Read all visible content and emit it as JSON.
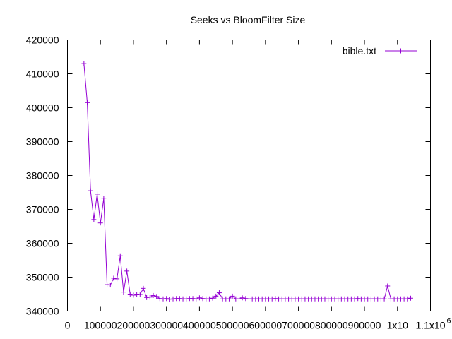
{
  "chart_data": {
    "type": "line",
    "title": "Seeks vs BloomFilter Size",
    "xlabel": "",
    "ylabel": "",
    "xlim": [
      0,
      1100000
    ],
    "ylim": [
      340000,
      420000
    ],
    "x_ticks": [
      0,
      100000,
      200000,
      300000,
      400000,
      500000,
      600000,
      700000,
      800000,
      900000,
      1000000,
      1100000
    ],
    "x_tick_labels": [
      "0",
      "100000",
      "200000",
      "300000",
      "400000",
      "500000",
      "600000",
      "700000",
      "800000",
      "900000",
      "1x10",
      "1.1x10"
    ],
    "x_tick_exponent": "6",
    "y_ticks": [
      340000,
      350000,
      360000,
      370000,
      380000,
      390000,
      400000,
      410000,
      420000
    ],
    "y_tick_labels": [
      "340000",
      "350000",
      "360000",
      "370000",
      "380000",
      "390000",
      "400000",
      "410000",
      "420000"
    ],
    "grid": false,
    "legend_position": "top-right",
    "series": [
      {
        "name": "bible.txt",
        "color": "#9400d3",
        "x": [
          50000,
          60000,
          70000,
          80000,
          90000,
          100000,
          110000,
          120000,
          130000,
          140000,
          150000,
          160000,
          170000,
          180000,
          190000,
          200000,
          210000,
          220000,
          230000,
          240000,
          250000,
          260000,
          270000,
          280000,
          290000,
          300000,
          310000,
          320000,
          330000,
          340000,
          350000,
          360000,
          370000,
          380000,
          390000,
          400000,
          410000,
          420000,
          430000,
          440000,
          450000,
          460000,
          470000,
          480000,
          490000,
          500000,
          510000,
          520000,
          530000,
          540000,
          550000,
          560000,
          570000,
          580000,
          590000,
          600000,
          610000,
          620000,
          630000,
          640000,
          650000,
          660000,
          670000,
          680000,
          690000,
          700000,
          710000,
          720000,
          730000,
          740000,
          750000,
          760000,
          770000,
          780000,
          790000,
          800000,
          810000,
          820000,
          830000,
          840000,
          850000,
          860000,
          870000,
          880000,
          890000,
          900000,
          910000,
          920000,
          930000,
          940000,
          950000,
          960000,
          970000,
          980000,
          990000,
          1000000,
          1010000,
          1020000,
          1030000,
          1040000
        ],
        "values": [
          413000,
          401500,
          375500,
          367000,
          374500,
          366000,
          373300,
          347800,
          347700,
          349700,
          349500,
          356300,
          345600,
          351800,
          345000,
          344700,
          345000,
          344900,
          346700,
          344000,
          344100,
          344600,
          344300,
          343700,
          343600,
          343700,
          343500,
          343600,
          343700,
          343700,
          343600,
          343600,
          343700,
          343700,
          343600,
          343900,
          343700,
          343600,
          343600,
          343800,
          344400,
          345400,
          343600,
          343600,
          343600,
          344400,
          343600,
          343600,
          343900,
          343700,
          343600,
          343600,
          343600,
          343600,
          343600,
          343600,
          343600,
          343600,
          343700,
          343600,
          343600,
          343600,
          343600,
          343600,
          343600,
          343600,
          343600,
          343600,
          343600,
          343600,
          343600,
          343600,
          343600,
          343600,
          343600,
          343600,
          343600,
          343600,
          343600,
          343600,
          343600,
          343600,
          343600,
          343700,
          343600,
          343600,
          343600,
          343600,
          343600,
          343600,
          343600,
          343600,
          347400,
          343600,
          343600,
          343600,
          343600,
          343600,
          343600,
          343800
        ]
      }
    ]
  }
}
